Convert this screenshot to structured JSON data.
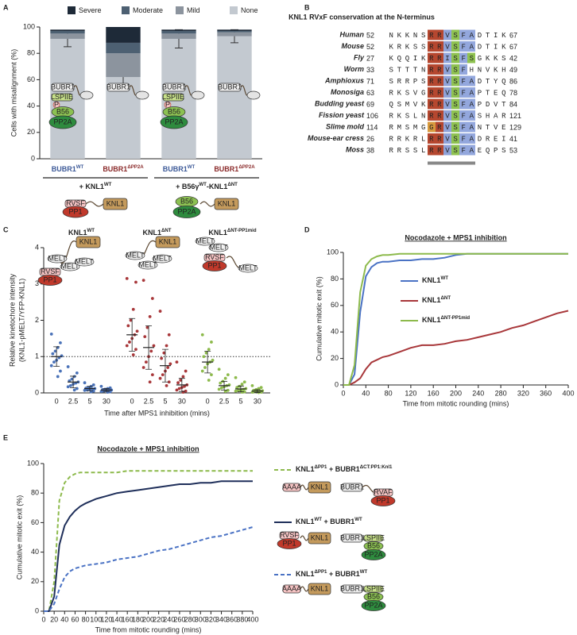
{
  "chart_data": [
    {
      "type": "stacked_bar",
      "panel": "A",
      "ylabel": "Cells with misalignment (%)",
      "categories": [
        "BUBR1",
        "BUBR1",
        "BUBR1",
        "BUBR1"
      ],
      "category_superscripts": [
        "WT",
        "ΔPP2A",
        "WT",
        "ΔPP2A"
      ],
      "category_colors": [
        "#3d5a98",
        "#8b2b2b",
        "#3d5a98",
        "#8b2b2b"
      ],
      "groups": [
        [
          "+ KNL1",
          "WT"
        ],
        [
          "+ B56γ",
          "WT",
          "-KNL1",
          "ΔNT"
        ]
      ],
      "group_colors": [
        "#3d5a98",
        "#8cb43c"
      ],
      "ylim": [
        0,
        100
      ],
      "yticks": [
        0,
        20,
        40,
        60,
        80,
        100
      ],
      "series": [
        {
          "name": "Severe",
          "color": "#1e2a38",
          "values": [
            1,
            12,
            1,
            1
          ]
        },
        {
          "name": "Moderate",
          "color": "#4d6072",
          "values": [
            2,
            8,
            2,
            1
          ]
        },
        {
          "name": "Mild",
          "color": "#8c949e",
          "values": [
            4,
            18,
            4,
            3
          ]
        },
        {
          "name": "None",
          "color": "#c3c9d0",
          "values": [
            91,
            62,
            91,
            93
          ],
          "errors": [
            6,
            9,
            7,
            5
          ]
        }
      ]
    },
    {
      "type": "strip",
      "panel": "C",
      "ylabel": [
        "Relative kinetochore intensity",
        "(KNL1-pMELT/YFP-KNL1)"
      ],
      "xlabel": "Time after MPS1 inhibition (mins)",
      "categories": [
        "0",
        "2.5",
        "5",
        "30"
      ],
      "ylim": [
        0,
        4
      ],
      "yticks": [
        0,
        1,
        2,
        3,
        4
      ],
      "reference_line": 1,
      "series": [
        {
          "name": [
            "KNL1",
            "WT"
          ],
          "color": "#4a72b8",
          "points": [
            [
              1.62,
              1.38,
              1.25,
              1.15,
              1.08,
              1.02,
              0.97,
              0.9,
              0.85,
              0.75,
              0.6,
              0.45
            ],
            [
              0.72,
              0.55,
              0.45,
              0.38,
              0.33,
              0.3,
              0.27,
              0.24,
              0.2,
              0.17,
              0.12,
              0.08
            ],
            [
              0.28,
              0.22,
              0.18,
              0.15,
              0.13,
              0.12,
              0.11,
              0.1,
              0.08,
              0.07,
              0.05,
              0.03
            ],
            [
              0.18,
              0.14,
              0.12,
              0.1,
              0.09,
              0.08,
              0.07,
              0.06,
              0.05,
              0.04,
              0.03,
              0.02
            ]
          ],
          "means": [
            1.0,
            0.3,
            0.12,
            0.08
          ],
          "sds": [
            0.27,
            0.16,
            0.06,
            0.04
          ]
        },
        {
          "name": [
            "KNL1",
            "ΔNT"
          ],
          "color": "#a8373a",
          "points": [
            [
              3.15,
              3.05,
              2.3,
              2.0,
              1.85,
              1.7,
              1.6,
              1.5,
              1.4,
              1.3,
              1.2,
              1.05
            ],
            [
              3.1,
              2.6,
              2.1,
              1.8,
              1.55,
              1.3,
              1.15,
              1.0,
              0.85,
              0.7,
              0.5,
              0.3
            ],
            [
              2.25,
              1.6,
              1.3,
              1.1,
              0.95,
              0.8,
              0.7,
              0.6,
              0.5,
              0.4,
              0.3,
              0.2
            ],
            [
              0.85,
              0.6,
              0.45,
              0.35,
              0.28,
              0.22,
              0.18,
              0.15,
              0.12,
              0.08,
              0.05,
              0.02
            ]
          ],
          "means": [
            1.6,
            1.25,
            0.75,
            0.22
          ],
          "sds": [
            0.45,
            0.6,
            0.45,
            0.18
          ]
        },
        {
          "name": [
            "KNL1",
            "ΔNT-PP1mid"
          ],
          "color": "#8dba4c",
          "points": [
            [
              1.6,
              1.4,
              1.2,
              1.1,
              1.0,
              0.9,
              0.85,
              0.8,
              0.7,
              0.6,
              0.5,
              0.35
            ],
            [
              0.65,
              0.5,
              0.4,
              0.32,
              0.27,
              0.22,
              0.2,
              0.17,
              0.14,
              0.1,
              0.07,
              0.04
            ],
            [
              0.42,
              0.3,
              0.24,
              0.18,
              0.15,
              0.12,
              0.1,
              0.08,
              0.06,
              0.05,
              0.03,
              0.02
            ],
            [
              0.2,
              0.15,
              0.12,
              0.09,
              0.07,
              0.06,
              0.05,
              0.04,
              0.03,
              0.02,
              0.02,
              0.01
            ]
          ],
          "means": [
            0.85,
            0.2,
            0.11,
            0.05
          ],
          "sds": [
            0.3,
            0.12,
            0.08,
            0.04
          ]
        }
      ]
    },
    {
      "type": "line",
      "panel": "D",
      "title": "Nocodazole + MPS1 inhibition",
      "xlabel": "Time from mitotic rounding (mins)",
      "ylabel": "Cumulative mitotic exit (%)",
      "xlim": [
        0,
        400
      ],
      "xticks": [
        0,
        40,
        80,
        120,
        160,
        200,
        240,
        280,
        320,
        360,
        400
      ],
      "ylim": [
        0,
        100
      ],
      "yticks": [
        0,
        20,
        40,
        60,
        80,
        100
      ],
      "legend": "center right",
      "x": [
        0,
        10,
        20,
        30,
        40,
        50,
        60,
        70,
        80,
        100,
        120,
        140,
        160,
        180,
        200,
        220,
        240,
        260,
        280,
        300,
        320,
        340,
        360,
        380,
        400
      ],
      "series": [
        {
          "name": [
            "KNL1",
            "WT"
          ],
          "color": "#4a72c4",
          "dashed": false,
          "values": [
            0,
            0,
            8,
            55,
            82,
            89,
            92,
            93,
            93,
            94,
            94,
            95,
            95,
            96,
            98,
            99,
            99,
            99,
            99,
            99,
            99,
            99,
            99,
            99,
            99
          ]
        },
        {
          "name": [
            "KNL1",
            "ΔNT"
          ],
          "color": "#a8373a",
          "dashed": false,
          "values": [
            0,
            0,
            2,
            5,
            12,
            17,
            19,
            21,
            22,
            25,
            28,
            30,
            30,
            31,
            33,
            34,
            36,
            38,
            40,
            43,
            45,
            48,
            51,
            54,
            56
          ]
        },
        {
          "name": [
            "KNL1",
            "ΔNT-PP1mid"
          ],
          "color": "#8dba4c",
          "dashed": false,
          "values": [
            0,
            0,
            15,
            70,
            90,
            95,
            97,
            98,
            98,
            99,
            99,
            99,
            99,
            99,
            99,
            99,
            99,
            99,
            99,
            99,
            99,
            99,
            99,
            99,
            99
          ]
        }
      ]
    },
    {
      "type": "line",
      "panel": "E",
      "title": "Nocodazole + MPS1 inhibition",
      "xlabel": "Time from mitotic rounding (mins)",
      "ylabel": "Cumulative mitotic exit (%)",
      "xlim": [
        0,
        400
      ],
      "xticks": [
        0,
        20,
        40,
        60,
        80,
        100,
        120,
        140,
        160,
        180,
        200,
        220,
        240,
        260,
        280,
        300,
        320,
        340,
        360,
        380,
        400
      ],
      "ylim": [
        0,
        100
      ],
      "yticks": [
        0,
        20,
        40,
        60,
        80,
        100
      ],
      "legend": "outside right",
      "x": [
        0,
        10,
        20,
        30,
        40,
        50,
        60,
        70,
        80,
        100,
        120,
        140,
        160,
        180,
        200,
        220,
        240,
        260,
        280,
        300,
        320,
        340,
        360,
        380,
        400
      ],
      "series": [
        {
          "name": [
            "KNL1",
            "ΔPP1",
            " + BUBR1",
            "ΔCT:PP1:Knl1"
          ],
          "color": "#8dba4c",
          "dashed": true,
          "values": [
            0,
            0,
            20,
            75,
            87,
            91,
            93,
            94,
            94,
            94,
            94,
            94,
            95,
            95,
            95,
            95,
            95,
            95,
            95,
            95,
            95,
            95,
            95,
            95,
            95
          ]
        },
        {
          "name": [
            "KNL1",
            "WT",
            " + BUBR1",
            "WT"
          ],
          "color": "#1f2f5a",
          "dashed": false,
          "values": [
            0,
            0,
            10,
            45,
            58,
            64,
            68,
            71,
            73,
            76,
            78,
            80,
            81,
            82,
            83,
            84,
            85,
            86,
            86,
            87,
            87,
            88,
            88,
            88,
            88
          ]
        },
        {
          "name": [
            "KNL1",
            "ΔPP1",
            " + BUBR1",
            "WT"
          ],
          "color": "#4a72c4",
          "dashed": true,
          "values": [
            0,
            0,
            5,
            15,
            23,
            27,
            29,
            30,
            31,
            32,
            33,
            35,
            36,
            37,
            39,
            41,
            42,
            44,
            46,
            48,
            50,
            51,
            53,
            55,
            57
          ]
        }
      ]
    }
  ],
  "alignment": {
    "panel": "B",
    "title": "KNL1 RVxF conservation at the N-terminus",
    "residue_colors": {
      "R": "#b5472f",
      "K": "#b5472f",
      "V": "#8fa2d8",
      "I": "#93a7dd",
      "S": "#8fc251",
      "F": "#93a7dd",
      "A": "#93a7dd",
      "G": "#d89a3e"
    },
    "rows": [
      {
        "species": "Human",
        "start": 52,
        "sequence": "NKKNSRRVSFADTIK",
        "end": 67
      },
      {
        "species": "Mouse",
        "start": 52,
        "sequence": "KRKSSRRVSFADTIK",
        "end": 67
      },
      {
        "species": "Fly",
        "start": 27,
        "sequence": "KQQIKRRISFSGKKS",
        "end": 42
      },
      {
        "species": "Worm",
        "start": 33,
        "sequence": "STTTNRRVSFHNVKH",
        "end": 49
      },
      {
        "species": "Amphioxus",
        "start": 71,
        "sequence": "SRRPSRRVSFADTYQ",
        "end": 86
      },
      {
        "species": "Monosiga",
        "start": 63,
        "sequence": "RKSVGRRVSFAPTEQ",
        "end": 78
      },
      {
        "species": "Budding yeast",
        "start": 69,
        "sequence": "QSMVKRRVSFAPDVT",
        "end": 84
      },
      {
        "species": "Fission yeast",
        "start": 106,
        "sequence": "RKSLNRRVSFASHAR",
        "end": 121
      },
      {
        "species": "Slime mold",
        "start": 114,
        "sequence": "RMSMGGRVSFANTVE",
        "end": 129
      },
      {
        "species": "Mouse-ear cress",
        "start": 26,
        "sequence": "RRKRLRRVSFADREI",
        "end": 41
      },
      {
        "species": "Moss",
        "start": 38,
        "sequence": "RRSSLRRVSFAEQPS",
        "end": 53
      }
    ]
  },
  "cartoons": {
    "a_top": [
      [
        "BUBR1",
        "LSPIIE",
        "P",
        "B56",
        "PP2A"
      ],
      [
        "BUBR1"
      ],
      [
        "BUBR1",
        "LSPIIE",
        "P",
        "B56",
        "PP2A"
      ],
      [
        "BUBR1"
      ]
    ],
    "a_bottom": [
      [
        "RVSF",
        "PP1",
        "KNL1"
      ],
      [
        "B56",
        "PP2A",
        "KNL1"
      ]
    ],
    "c": [
      [
        "KNL1",
        "MELT",
        "MELT",
        "MELT",
        "RVSF",
        "PP1"
      ],
      [
        "KNL1",
        "MELT",
        "MELT",
        "MELT"
      ],
      [
        "MELT",
        "MELT",
        "RVSF",
        "PP1",
        "MELT"
      ]
    ],
    "e": [
      [
        "AAAA",
        "KNL1",
        "BUBR1",
        "RVAF",
        "PP1"
      ],
      [
        "RVSF",
        "PP1",
        "KNL1",
        "BUBR1",
        "LSPIIE",
        "B56",
        "PP2A"
      ],
      [
        "AAAA",
        "KNL1",
        "BUBR1",
        "LSPIIE",
        "B56",
        "PP2A"
      ]
    ]
  }
}
